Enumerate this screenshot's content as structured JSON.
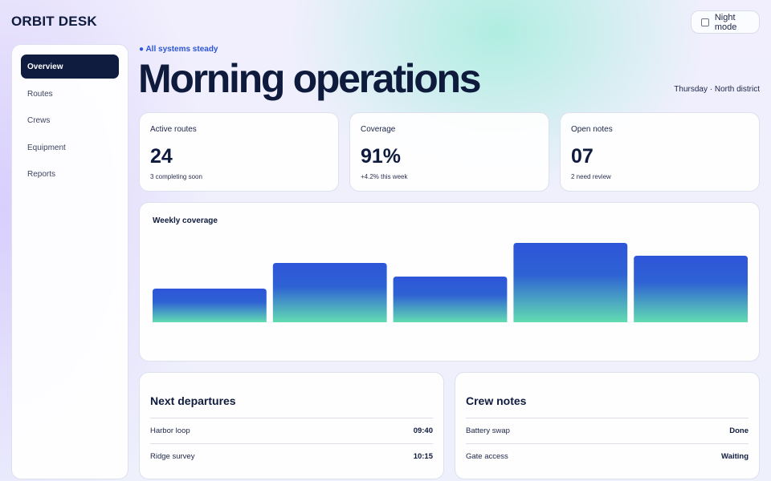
{
  "app": {
    "brand": "ORBIT DESK"
  },
  "night_mode": {
    "label": "Night mode",
    "checked": false
  },
  "sidebar": {
    "items": [
      {
        "label": "Overview",
        "active": true
      },
      {
        "label": "Routes"
      },
      {
        "label": "Crews"
      },
      {
        "label": "Equipment"
      },
      {
        "label": "Reports"
      }
    ]
  },
  "header": {
    "status": "● All systems steady",
    "title": "Morning operations",
    "meta": "Thursday · North district"
  },
  "stats": [
    {
      "label": "Active routes",
      "value": "24",
      "sub": "3 completing soon"
    },
    {
      "label": "Coverage",
      "value": "91%",
      "sub": "+4.2% this week"
    },
    {
      "label": "Open notes",
      "value": "07",
      "sub": "2 need review"
    }
  ],
  "chart_data": {
    "type": "bar",
    "title": "Weekly coverage",
    "values": [
      42,
      74,
      57,
      99,
      83
    ],
    "ylim": [
      0,
      100
    ],
    "colors": {
      "top": "#2d55d8",
      "bottom": "#62dcb2"
    }
  },
  "departures": {
    "title": "Next departures",
    "rows": [
      {
        "name": "Harbor loop",
        "value": "09:40"
      },
      {
        "name": "Ridge survey",
        "value": "10:15"
      }
    ]
  },
  "crew_notes": {
    "title": "Crew notes",
    "rows": [
      {
        "name": "Battery swap",
        "value": "Done"
      },
      {
        "name": "Gate access",
        "value": "Waiting"
      }
    ]
  }
}
